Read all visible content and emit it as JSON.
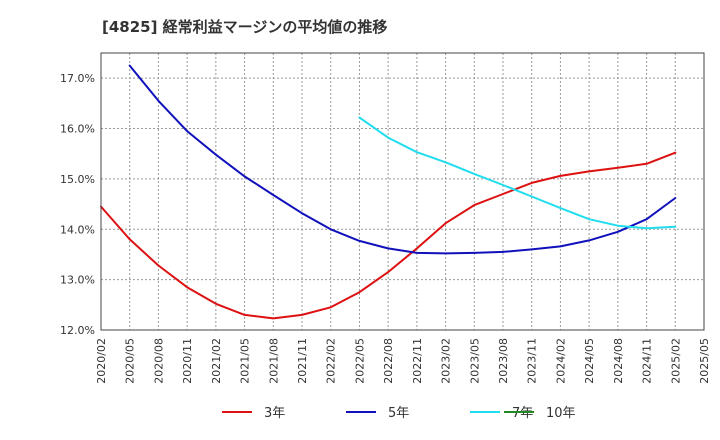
{
  "chart_data": {
    "type": "line",
    "title": "[4825]  経常利益マージンの平均値の推移",
    "xlabel": "",
    "ylabel": "",
    "ylim": [
      12.0,
      17.5
    ],
    "y_ticks": [
      "12.0%",
      "13.0%",
      "14.0%",
      "15.0%",
      "16.0%",
      "17.0%"
    ],
    "y_tick_values": [
      12.0,
      13.0,
      14.0,
      15.0,
      16.0,
      17.0
    ],
    "x_ticks": [
      "2020/02",
      "2020/05",
      "2020/08",
      "2020/11",
      "2021/02",
      "2021/05",
      "2021/08",
      "2021/11",
      "2022/02",
      "2022/05",
      "2022/08",
      "2022/11",
      "2023/02",
      "2023/05",
      "2023/08",
      "2023/11",
      "2024/02",
      "2024/05",
      "2024/08",
      "2024/11",
      "2025/02",
      "2025/05"
    ],
    "grid": true,
    "legend_position": "bottom",
    "series": [
      {
        "name": "3年",
        "color": "#dd1111",
        "points": [
          [
            "2020/02",
            14.45
          ],
          [
            "2020/05",
            13.8
          ],
          [
            "2020/08",
            13.28
          ],
          [
            "2020/11",
            12.85
          ],
          [
            "2021/02",
            12.52
          ],
          [
            "2021/05",
            12.3
          ],
          [
            "2021/08",
            12.23
          ],
          [
            "2021/11",
            12.3
          ],
          [
            "2022/02",
            12.45
          ],
          [
            "2022/05",
            12.75
          ],
          [
            "2022/08",
            13.15
          ],
          [
            "2022/11",
            13.62
          ],
          [
            "2023/02",
            14.12
          ],
          [
            "2023/05",
            14.48
          ],
          [
            "2023/08",
            14.7
          ],
          [
            "2023/11",
            14.92
          ],
          [
            "2024/02",
            15.06
          ],
          [
            "2024/05",
            15.15
          ],
          [
            "2024/08",
            15.22
          ],
          [
            "2024/11",
            15.3
          ],
          [
            "2025/02",
            15.52
          ]
        ]
      },
      {
        "name": "5年",
        "color": "#1111bb",
        "points": [
          [
            "2020/05",
            17.25
          ],
          [
            "2020/08",
            16.55
          ],
          [
            "2020/11",
            15.95
          ],
          [
            "2021/02",
            15.48
          ],
          [
            "2021/05",
            15.05
          ],
          [
            "2021/08",
            14.68
          ],
          [
            "2021/11",
            14.32
          ],
          [
            "2022/02",
            14.0
          ],
          [
            "2022/05",
            13.77
          ],
          [
            "2022/08",
            13.62
          ],
          [
            "2022/11",
            13.53
          ],
          [
            "2023/02",
            13.52
          ],
          [
            "2023/05",
            13.53
          ],
          [
            "2023/08",
            13.55
          ],
          [
            "2023/11",
            13.6
          ],
          [
            "2024/02",
            13.66
          ],
          [
            "2024/05",
            13.78
          ],
          [
            "2024/08",
            13.95
          ],
          [
            "2024/11",
            14.2
          ],
          [
            "2025/02",
            14.62
          ]
        ]
      },
      {
        "name": "7年",
        "color": "#22ddee",
        "points": [
          [
            "2022/05",
            16.22
          ],
          [
            "2022/08",
            15.82
          ],
          [
            "2022/11",
            15.53
          ],
          [
            "2023/02",
            15.33
          ],
          [
            "2023/05",
            15.1
          ],
          [
            "2023/08",
            14.88
          ],
          [
            "2023/11",
            14.65
          ],
          [
            "2024/02",
            14.42
          ],
          [
            "2024/05",
            14.2
          ],
          [
            "2024/08",
            14.07
          ],
          [
            "2024/11",
            14.02
          ],
          [
            "2025/02",
            14.05
          ]
        ]
      },
      {
        "name": "10年",
        "color": "#228822",
        "points": []
      }
    ]
  }
}
